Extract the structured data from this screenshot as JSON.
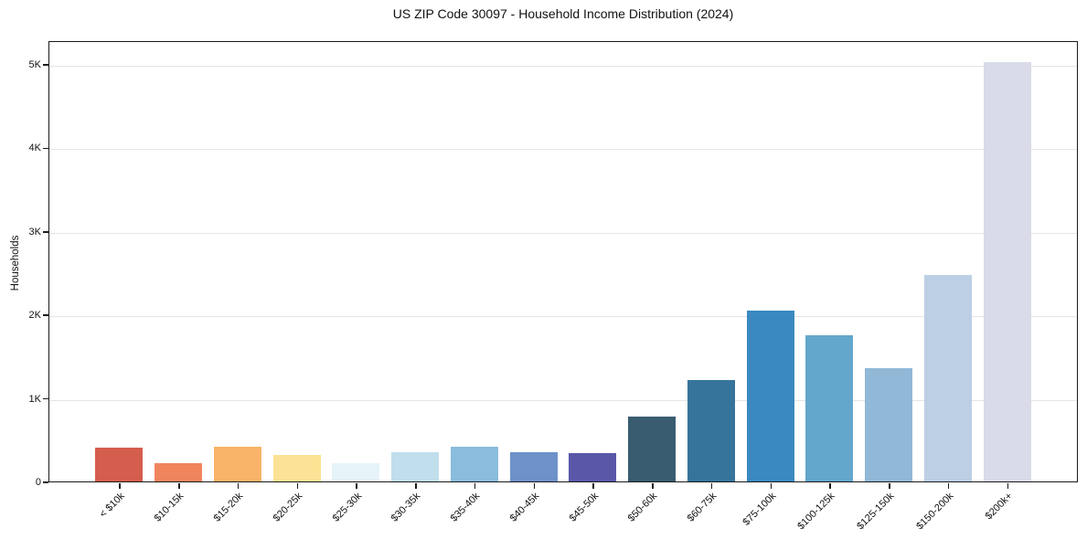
{
  "chart_data": {
    "type": "bar",
    "title": "US ZIP Code 30097 - Household Income Distribution (2024)",
    "xlabel": "",
    "ylabel": "Households",
    "ylim": [
      0,
      5285
    ],
    "grid": "horizontal-light",
    "legend": "none",
    "ytick_labels": [
      "0",
      "1K",
      "2K",
      "3K",
      "4K",
      "5K"
    ],
    "ytick_values": [
      0,
      1000,
      2000,
      3000,
      4000,
      5000
    ],
    "categories": [
      "< $10k",
      "$10-15k",
      "$15-20k",
      "$20-25k",
      "$25-30k",
      "$30-35k",
      "$35-40k",
      "$40-45k",
      "$45-50k",
      "$50-60k",
      "$60-75k",
      "$75-100k",
      "$100-125k",
      "$125-150k",
      "$150-200k",
      "$200k+"
    ],
    "values": [
      400,
      215,
      415,
      320,
      215,
      350,
      420,
      345,
      335,
      780,
      1215,
      2050,
      1750,
      1360,
      2470,
      5020
    ],
    "bar_colors": [
      "#d45d4e",
      "#f0855d",
      "#f9b469",
      "#fbe294",
      "#e6f4f9",
      "#c1deec",
      "#8abcdd",
      "#6d92c9",
      "#5a57a9",
      "#395c70",
      "#36749b",
      "#3a89c0",
      "#63a7cc",
      "#91b8d7",
      "#bccfe5",
      "#d9dbe9"
    ],
    "axis_color": "#1a1a1a",
    "gridline_color": "#e4e4e6",
    "background_color": "#ffffff"
  }
}
